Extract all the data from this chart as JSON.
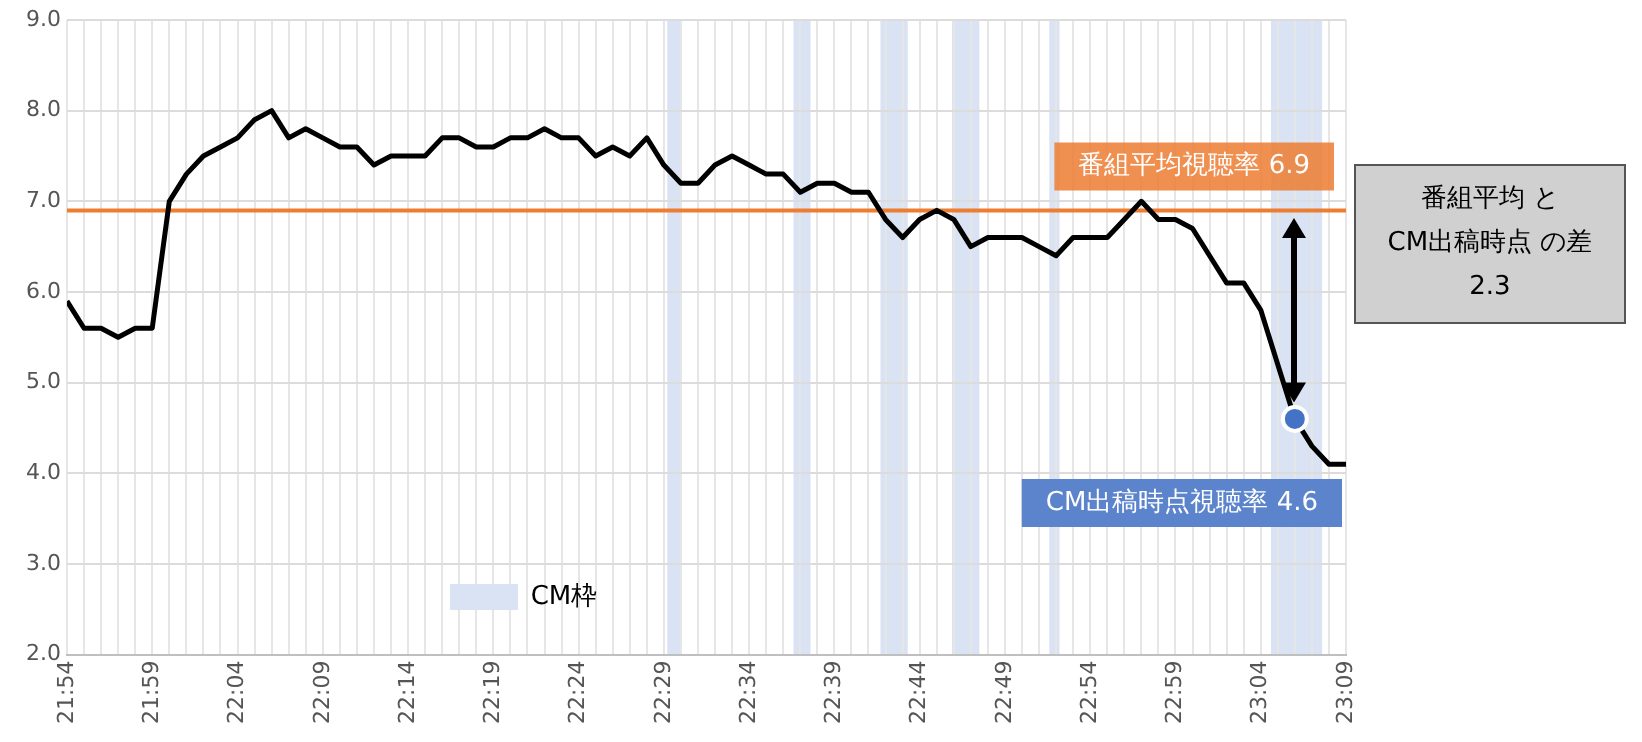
{
  "chart_data": {
    "type": "line",
    "x": [
      21.9,
      21.9167,
      21.9333,
      21.95,
      21.9667,
      21.9833,
      22.0,
      22.0167,
      22.0333,
      22.05,
      22.0667,
      22.0833,
      22.1,
      22.1167,
      22.1333,
      22.15,
      22.1667,
      22.1833,
      22.2,
      22.2167,
      22.2333,
      22.25,
      22.2667,
      22.2833,
      22.3,
      22.3167,
      22.3333,
      22.35,
      22.3667,
      22.3833,
      22.4,
      22.4167,
      22.4333,
      22.45,
      22.4667,
      22.4833,
      22.5,
      22.5167,
      22.5333,
      22.55,
      22.5667,
      22.5833,
      22.6,
      22.6167,
      22.6333,
      22.65,
      22.6667,
      22.6833,
      22.7,
      22.7167,
      22.7333,
      22.75,
      22.7667,
      22.7833,
      22.8,
      22.8167,
      22.8333,
      22.85,
      22.8667,
      22.8833,
      22.9,
      22.9167,
      22.9333,
      22.95,
      22.9667,
      22.9833,
      23.0,
      23.0167,
      23.0333,
      23.05,
      23.0667,
      23.0833,
      23.1,
      23.1167,
      23.1333,
      23.15
    ],
    "series": [
      {
        "type": "line",
        "color": "#000000",
        "values": [
          5.9,
          5.6,
          5.6,
          5.5,
          5.6,
          5.6,
          7.0,
          7.3,
          7.5,
          7.6,
          7.7,
          7.9,
          8.0,
          7.7,
          7.8,
          7.7,
          7.6,
          7.6,
          7.4,
          7.5,
          7.5,
          7.5,
          7.7,
          7.7,
          7.6,
          7.6,
          7.7,
          7.7,
          7.8,
          7.7,
          7.7,
          7.5,
          7.6,
          7.5,
          7.7,
          7.4,
          7.2,
          7.2,
          7.4,
          7.5,
          7.4,
          7.3,
          7.3,
          7.1,
          7.2,
          7.2,
          7.1,
          7.1,
          6.8,
          6.6,
          6.8,
          6.9,
          6.8,
          6.5,
          6.6,
          6.6,
          6.6,
          6.5,
          6.4,
          6.6,
          6.6,
          6.6,
          6.8,
          7.0,
          6.8,
          6.8,
          6.7,
          6.4,
          6.1,
          6.1,
          5.8,
          5.2,
          4.6,
          4.3,
          4.1,
          4.1
        ]
      },
      {
        "type": "scatter",
        "color": "#4472c4",
        "x": [
          23.1
        ],
        "values": [
          4.6
        ]
      }
    ],
    "xlim": [
      21.9,
      23.15
    ],
    "xticks": [
      {
        "value": 21.9,
        "label": "21:54"
      },
      {
        "value": 21.9167,
        "label": null
      },
      {
        "value": 21.9333,
        "label": null
      },
      {
        "value": 21.95,
        "label": null
      },
      {
        "value": 21.9667,
        "label": null
      },
      {
        "value": 21.9833,
        "label": "21:59"
      },
      {
        "value": 22.0,
        "label": null
      },
      {
        "value": 22.0167,
        "label": null
      },
      {
        "value": 22.0333,
        "label": null
      },
      {
        "value": 22.05,
        "label": null
      },
      {
        "value": 22.0667,
        "label": "22:04"
      },
      {
        "value": 22.0833,
        "label": null
      },
      {
        "value": 22.1,
        "label": null
      },
      {
        "value": 22.1167,
        "label": null
      },
      {
        "value": 22.1333,
        "label": null
      },
      {
        "value": 22.15,
        "label": "22:09"
      },
      {
        "value": 22.1667,
        "label": null
      },
      {
        "value": 22.1833,
        "label": null
      },
      {
        "value": 22.2,
        "label": null
      },
      {
        "value": 22.2167,
        "label": null
      },
      {
        "value": 22.2333,
        "label": "22:14"
      },
      {
        "value": 22.25,
        "label": null
      },
      {
        "value": 22.2667,
        "label": null
      },
      {
        "value": 22.2833,
        "label": null
      },
      {
        "value": 22.3,
        "label": null
      },
      {
        "value": 22.3167,
        "label": "22:19"
      },
      {
        "value": 22.3333,
        "label": null
      },
      {
        "value": 22.35,
        "label": null
      },
      {
        "value": 22.3667,
        "label": null
      },
      {
        "value": 22.3833,
        "label": null
      },
      {
        "value": 22.4,
        "label": "22:24"
      },
      {
        "value": 22.4167,
        "label": null
      },
      {
        "value": 22.4333,
        "label": null
      },
      {
        "value": 22.45,
        "label": null
      },
      {
        "value": 22.4667,
        "label": null
      },
      {
        "value": 22.4833,
        "label": "22:29"
      },
      {
        "value": 22.5,
        "label": null
      },
      {
        "value": 22.5167,
        "label": null
      },
      {
        "value": 22.5333,
        "label": null
      },
      {
        "value": 22.55,
        "label": null
      },
      {
        "value": 22.5667,
        "label": "22:34"
      },
      {
        "value": 22.5833,
        "label": null
      },
      {
        "value": 22.6,
        "label": null
      },
      {
        "value": 22.6167,
        "label": null
      },
      {
        "value": 22.6333,
        "label": null
      },
      {
        "value": 22.65,
        "label": "22:39"
      },
      {
        "value": 22.6667,
        "label": null
      },
      {
        "value": 22.6833,
        "label": null
      },
      {
        "value": 22.7,
        "label": null
      },
      {
        "value": 22.7167,
        "label": null
      },
      {
        "value": 22.7333,
        "label": "22:44"
      },
      {
        "value": 22.75,
        "label": null
      },
      {
        "value": 22.7667,
        "label": null
      },
      {
        "value": 22.7833,
        "label": null
      },
      {
        "value": 22.8,
        "label": null
      },
      {
        "value": 22.8167,
        "label": "22:49"
      },
      {
        "value": 22.8333,
        "label": null
      },
      {
        "value": 22.85,
        "label": null
      },
      {
        "value": 22.8667,
        "label": null
      },
      {
        "value": 22.8833,
        "label": null
      },
      {
        "value": 22.9,
        "label": "22:54"
      },
      {
        "value": 22.9167,
        "label": null
      },
      {
        "value": 22.9333,
        "label": null
      },
      {
        "value": 22.95,
        "label": null
      },
      {
        "value": 22.9667,
        "label": null
      },
      {
        "value": 22.9833,
        "label": "22:59"
      },
      {
        "value": 23.0,
        "label": null
      },
      {
        "value": 23.0167,
        "label": null
      },
      {
        "value": 23.0333,
        "label": null
      },
      {
        "value": 23.05,
        "label": null
      },
      {
        "value": 23.0667,
        "label": "23:04"
      },
      {
        "value": 23.0833,
        "label": null
      },
      {
        "value": 23.1,
        "label": null
      },
      {
        "value": 23.1167,
        "label": null
      },
      {
        "value": 23.1333,
        "label": null
      },
      {
        "value": 23.15,
        "label": "23:09"
      }
    ],
    "ylim": [
      2,
      9
    ],
    "yticks": [
      {
        "value": 2,
        "label": "2.0"
      },
      {
        "value": 3,
        "label": "3.0"
      },
      {
        "value": 4,
        "label": "4.0"
      },
      {
        "value": 5,
        "label": "5.0"
      },
      {
        "value": 6,
        "label": "6.0"
      },
      {
        "value": 7,
        "label": "7.0"
      },
      {
        "value": 8,
        "label": "8.0"
      },
      {
        "value": 9,
        "label": "9.0"
      }
    ],
    "grid": true,
    "ref_lines": [
      {
        "axis": "y",
        "value": 6.9,
        "label": "番組平均視聴率 6.9",
        "color": "#ed7d31"
      }
    ],
    "bands": [
      {
        "axis": "x",
        "from": 22.4867,
        "to": 22.5,
        "label": "CM枠",
        "color": "#dae3f3"
      },
      {
        "axis": "x",
        "from": 22.61,
        "to": 22.6267,
        "color": "#dae3f3"
      },
      {
        "axis": "x",
        "from": 22.695,
        "to": 22.7217,
        "color": "#dae3f3"
      },
      {
        "axis": "x",
        "from": 22.765,
        "to": 22.7917,
        "color": "#dae3f3"
      },
      {
        "axis": "x",
        "from": 22.86,
        "to": 22.87,
        "color": "#dae3f3"
      },
      {
        "axis": "x",
        "from": 23.0767,
        "to": 23.1267,
        "color": "#dae3f3"
      }
    ],
    "annotations": [
      {
        "text": "CM出稿時点視聴率 4.6",
        "x": 23.1,
        "y": 4.6
      },
      "番組平均 と\nCM出稿時点 の差\n2.3"
    ]
  }
}
